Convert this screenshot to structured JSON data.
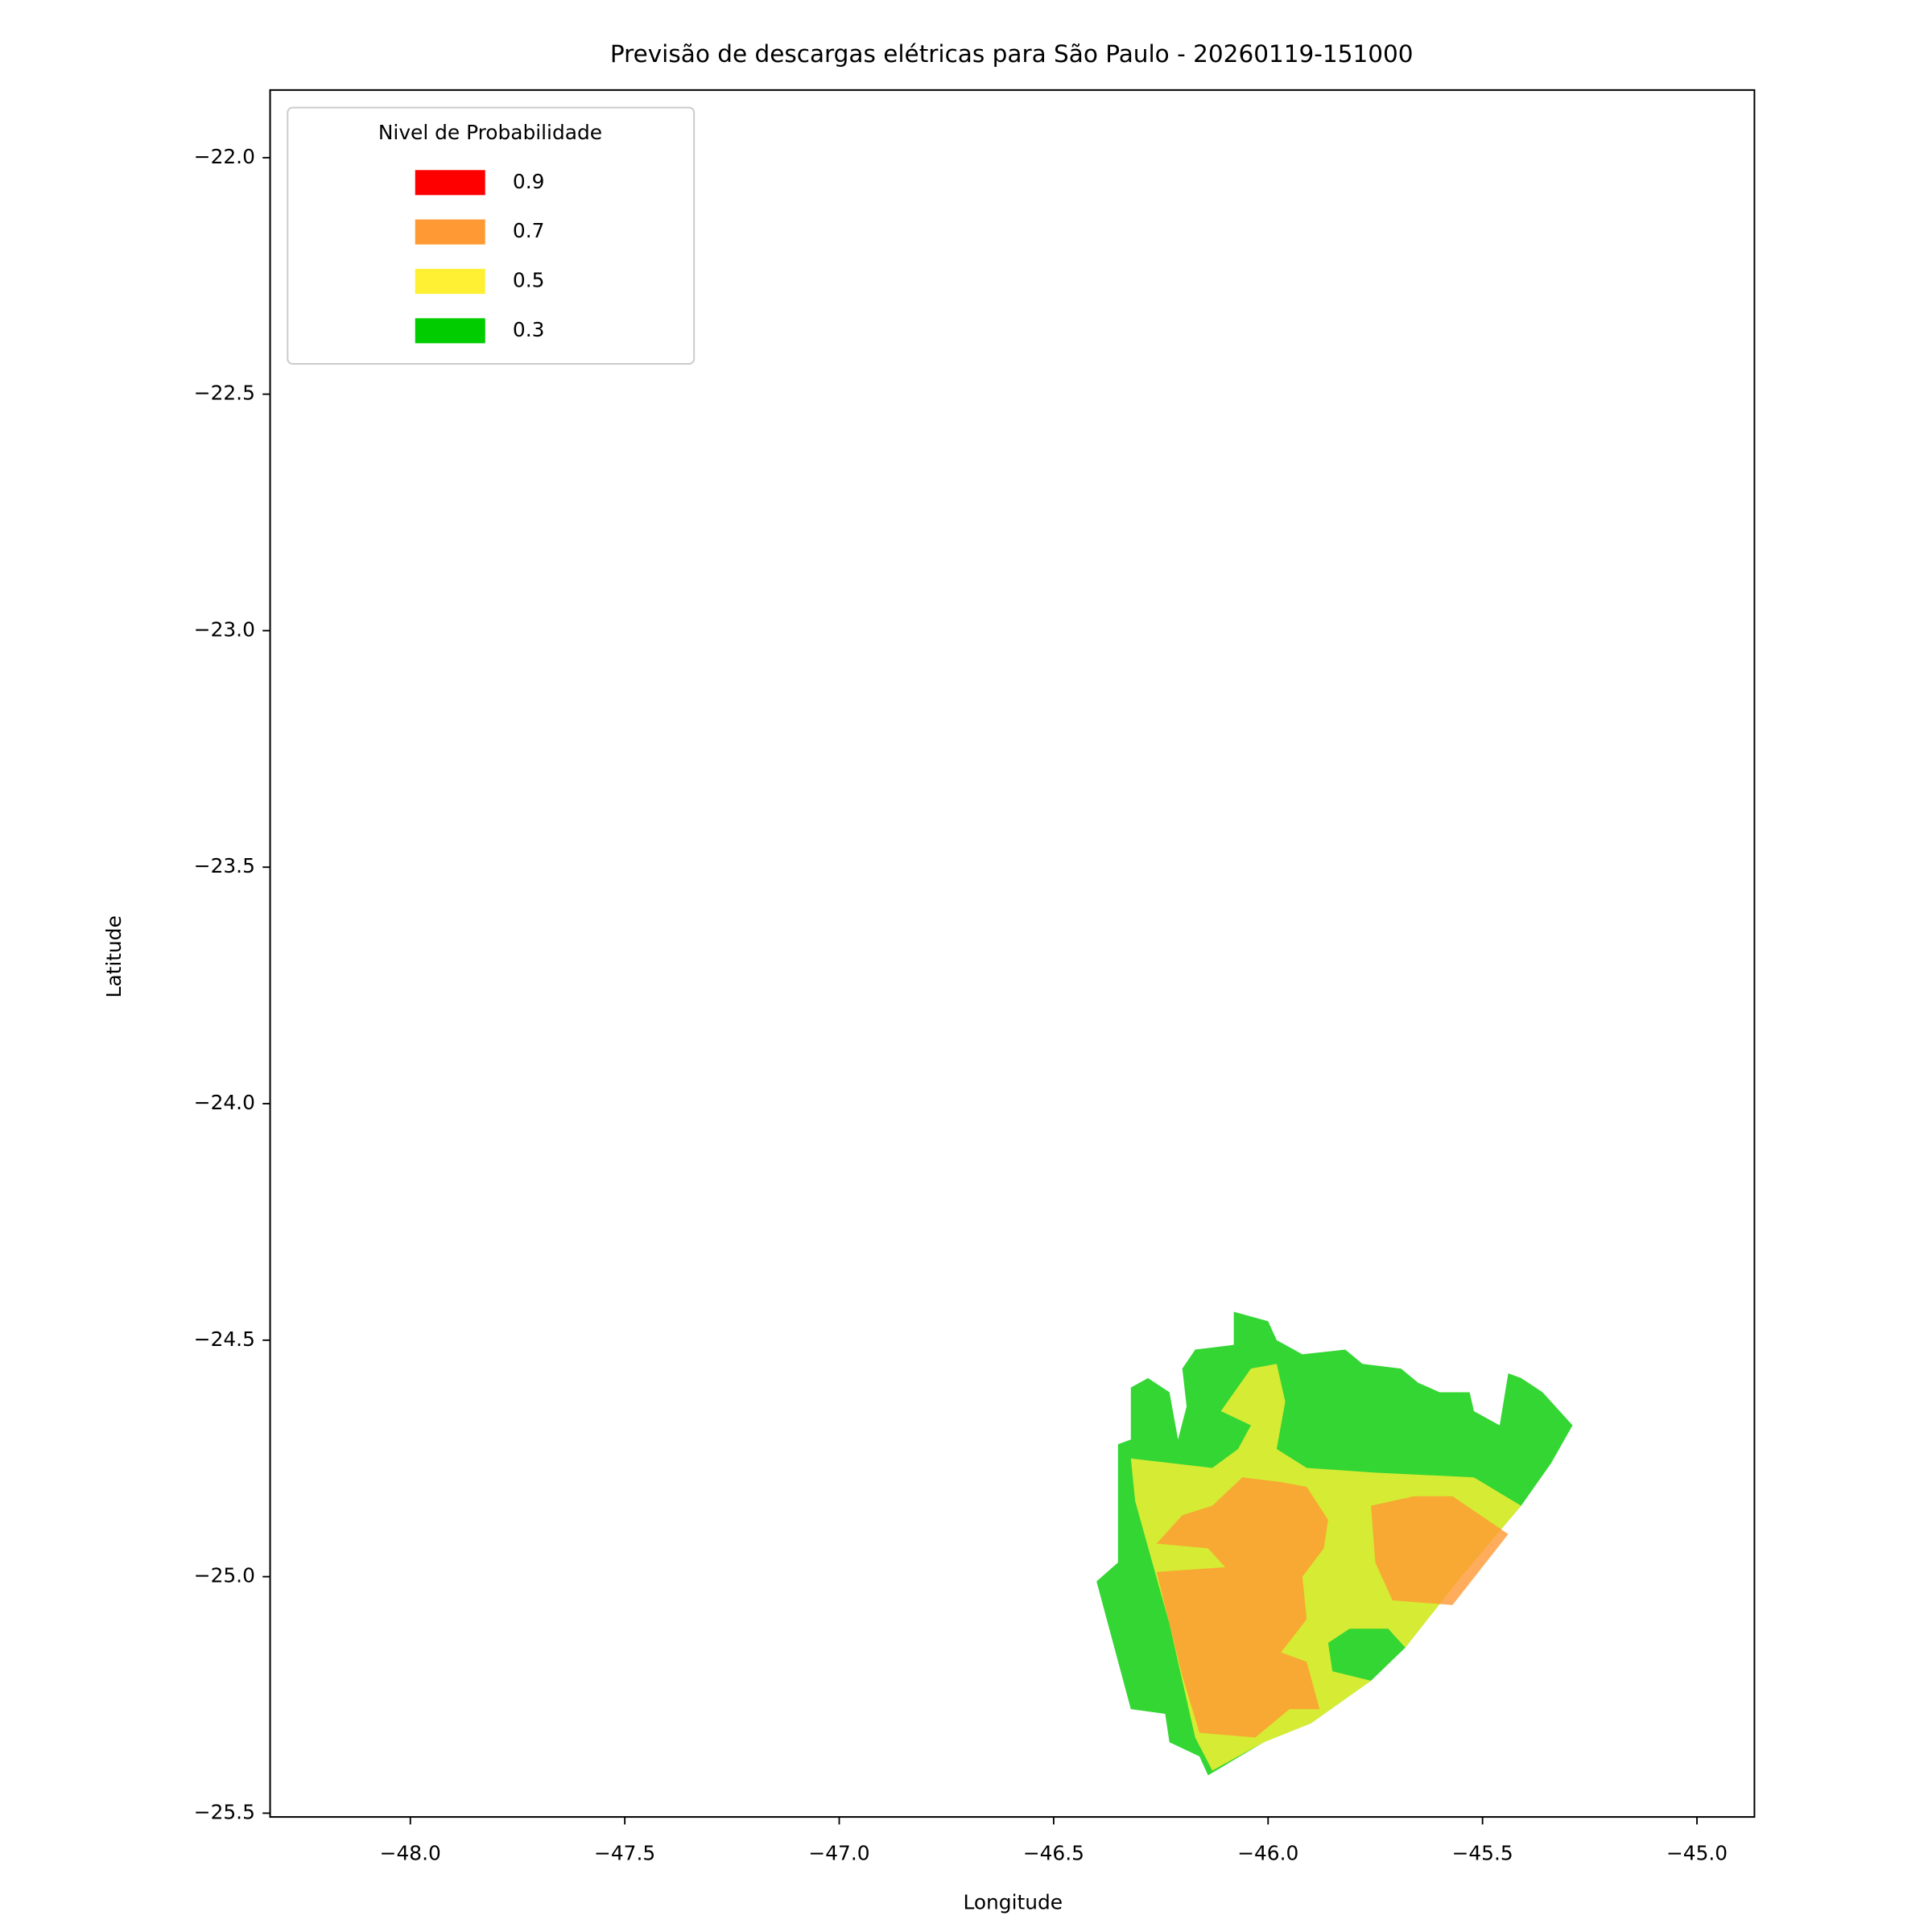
{
  "chart_data": {
    "type": "contourf",
    "title": "Previsão de descargas elétricas para São Paulo - 20260119-151000",
    "x_label": "Longitude",
    "y_label": "Latitude",
    "xlim": [
      -48.327,
      -44.866
    ],
    "ylim": [
      -25.508,
      -21.857
    ],
    "xticks": [
      {
        "value": -48.0,
        "label": "−48.0"
      },
      {
        "value": -47.5,
        "label": "−47.5"
      },
      {
        "value": -47.0,
        "label": "−47.0"
      },
      {
        "value": -46.5,
        "label": "−46.5"
      },
      {
        "value": -46.0,
        "label": "−46.0"
      },
      {
        "value": -45.5,
        "label": "−45.5"
      },
      {
        "value": -45.0,
        "label": "−45.0"
      }
    ],
    "yticks": [
      {
        "value": -25.5,
        "label": "−25.5"
      },
      {
        "value": -25.0,
        "label": "−25.0"
      },
      {
        "value": -24.5,
        "label": "−24.5"
      },
      {
        "value": -24.0,
        "label": "−24.0"
      },
      {
        "value": -23.5,
        "label": "−23.5"
      },
      {
        "value": -23.0,
        "label": "−23.0"
      },
      {
        "value": -22.5,
        "label": "−22.5"
      },
      {
        "value": -22.0,
        "label": "−22.0"
      }
    ],
    "legend": {
      "title": "Nivel de Probabilidade",
      "loc": "upper left"
    },
    "alpha": 0.8,
    "series": [
      {
        "name": "0.9",
        "color": "#ff0000",
        "regions": []
      },
      {
        "name": "0.7",
        "color": "#ff9933",
        "regions": [
          {
            "x": [
              -46.24,
              -46.2,
              -46.13,
              -46.06,
              -45.97,
              -45.91,
              -45.86,
              -45.87,
              -45.92,
              -45.91,
              -45.97,
              -45.91,
              -45.88,
              -45.95,
              -46.03,
              -46.16,
              -46.2,
              -46.26,
              -46.1,
              -46.14,
              -46.26
            ],
            "y": [
              -24.91,
              -24.87,
              -24.85,
              -24.79,
              -24.8,
              -24.81,
              -24.88,
              -24.94,
              -25.0,
              -25.09,
              -25.16,
              -25.18,
              -25.28,
              -25.28,
              -25.34,
              -25.33,
              -25.21,
              -24.99,
              -24.98,
              -24.94,
              -24.93
            ]
          },
          {
            "x": [
              -45.76,
              -45.66,
              -45.57,
              -45.44,
              -45.57,
              -45.71,
              -45.75
            ],
            "y": [
              -24.85,
              -24.83,
              -24.83,
              -24.91,
              -25.06,
              -25.05,
              -24.97
            ]
          }
        ]
      },
      {
        "name": "0.5",
        "color": "#fff033",
        "regions": [
          {
            "x": [
              -46.32,
              -46.13,
              -46.07,
              -46.04,
              -46.11,
              -46.04,
              -45.98,
              -45.96,
              -45.98,
              -45.91,
              -45.75,
              -45.52,
              -45.41,
              -45.55,
              -45.68,
              -45.72,
              -45.81,
              -45.86,
              -45.85,
              -45.76,
              -45.9,
              -46.01,
              -46.13,
              -46.17,
              -46.23,
              -46.27,
              -46.31
            ],
            "y": [
              -24.75,
              -24.77,
              -24.73,
              -24.68,
              -24.65,
              -24.56,
              -24.55,
              -24.63,
              -24.73,
              -24.77,
              -24.78,
              -24.79,
              -24.85,
              -25.0,
              -25.15,
              -25.11,
              -25.11,
              -25.14,
              -25.2,
              -25.22,
              -25.31,
              -25.35,
              -25.41,
              -25.34,
              -25.1,
              -24.97,
              -24.84
            ]
          }
        ]
      },
      {
        "name": "0.3",
        "color": "#00cc00",
        "regions": [
          {
            "x": [
              -46.08,
              -46.0,
              -45.98,
              -45.92,
              -45.82,
              -45.78,
              -45.69,
              -45.65,
              -45.6,
              -45.53,
              -45.52,
              -45.46,
              -45.44,
              -45.41,
              -45.36,
              -45.29,
              -45.34,
              -45.41,
              -45.55,
              -45.68,
              -45.76,
              -45.9,
              -46.01,
              -46.14,
              -46.16,
              -46.23,
              -46.24,
              -46.32,
              -46.4,
              -46.35,
              -46.35,
              -46.32,
              -46.32,
              -46.28,
              -46.23,
              -46.21,
              -46.19,
              -46.2,
              -46.17,
              -46.08
            ],
            "y": [
              -24.44,
              -24.46,
              -24.5,
              -24.53,
              -24.52,
              -24.55,
              -24.56,
              -24.59,
              -24.61,
              -24.61,
              -24.65,
              -24.68,
              -24.57,
              -24.58,
              -24.61,
              -24.68,
              -24.76,
              -24.85,
              -25.0,
              -25.15,
              -25.22,
              -25.31,
              -25.35,
              -25.42,
              -25.38,
              -25.35,
              -25.29,
              -25.28,
              -25.01,
              -24.97,
              -24.72,
              -24.71,
              -24.6,
              -24.58,
              -24.61,
              -24.71,
              -24.64,
              -24.56,
              -24.52,
              -24.51
            ]
          }
        ]
      }
    ]
  }
}
